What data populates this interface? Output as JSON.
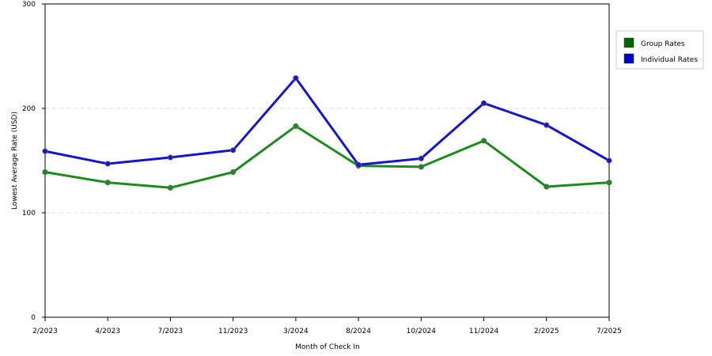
{
  "chart_data": {
    "type": "line",
    "title": "",
    "xlabel": "Month of Check In",
    "ylabel": "Lowest Average Rate (USD)",
    "categories": [
      "2/2023",
      "4/2023",
      "7/2023",
      "11/2023",
      "3/2024",
      "8/2024",
      "10/2024",
      "11/2024",
      "2/2025",
      "7/2025"
    ],
    "ylim": [
      0,
      300
    ],
    "yticks": [
      "0",
      "100",
      "200",
      "300"
    ],
    "grid": "horizontal dashed",
    "legend_position": "right",
    "series": [
      {
        "name": "Group Rates",
        "color": "#006400",
        "line_color": "#1e8b1e",
        "values": [
          139,
          129,
          124,
          139,
          183,
          145,
          144,
          169,
          125,
          129
        ]
      },
      {
        "name": "Individual Rates",
        "color": "#0000cc",
        "line_color": "#1515cc",
        "values": [
          159,
          147,
          153,
          160,
          229,
          146,
          152,
          205,
          184,
          150
        ]
      }
    ]
  }
}
